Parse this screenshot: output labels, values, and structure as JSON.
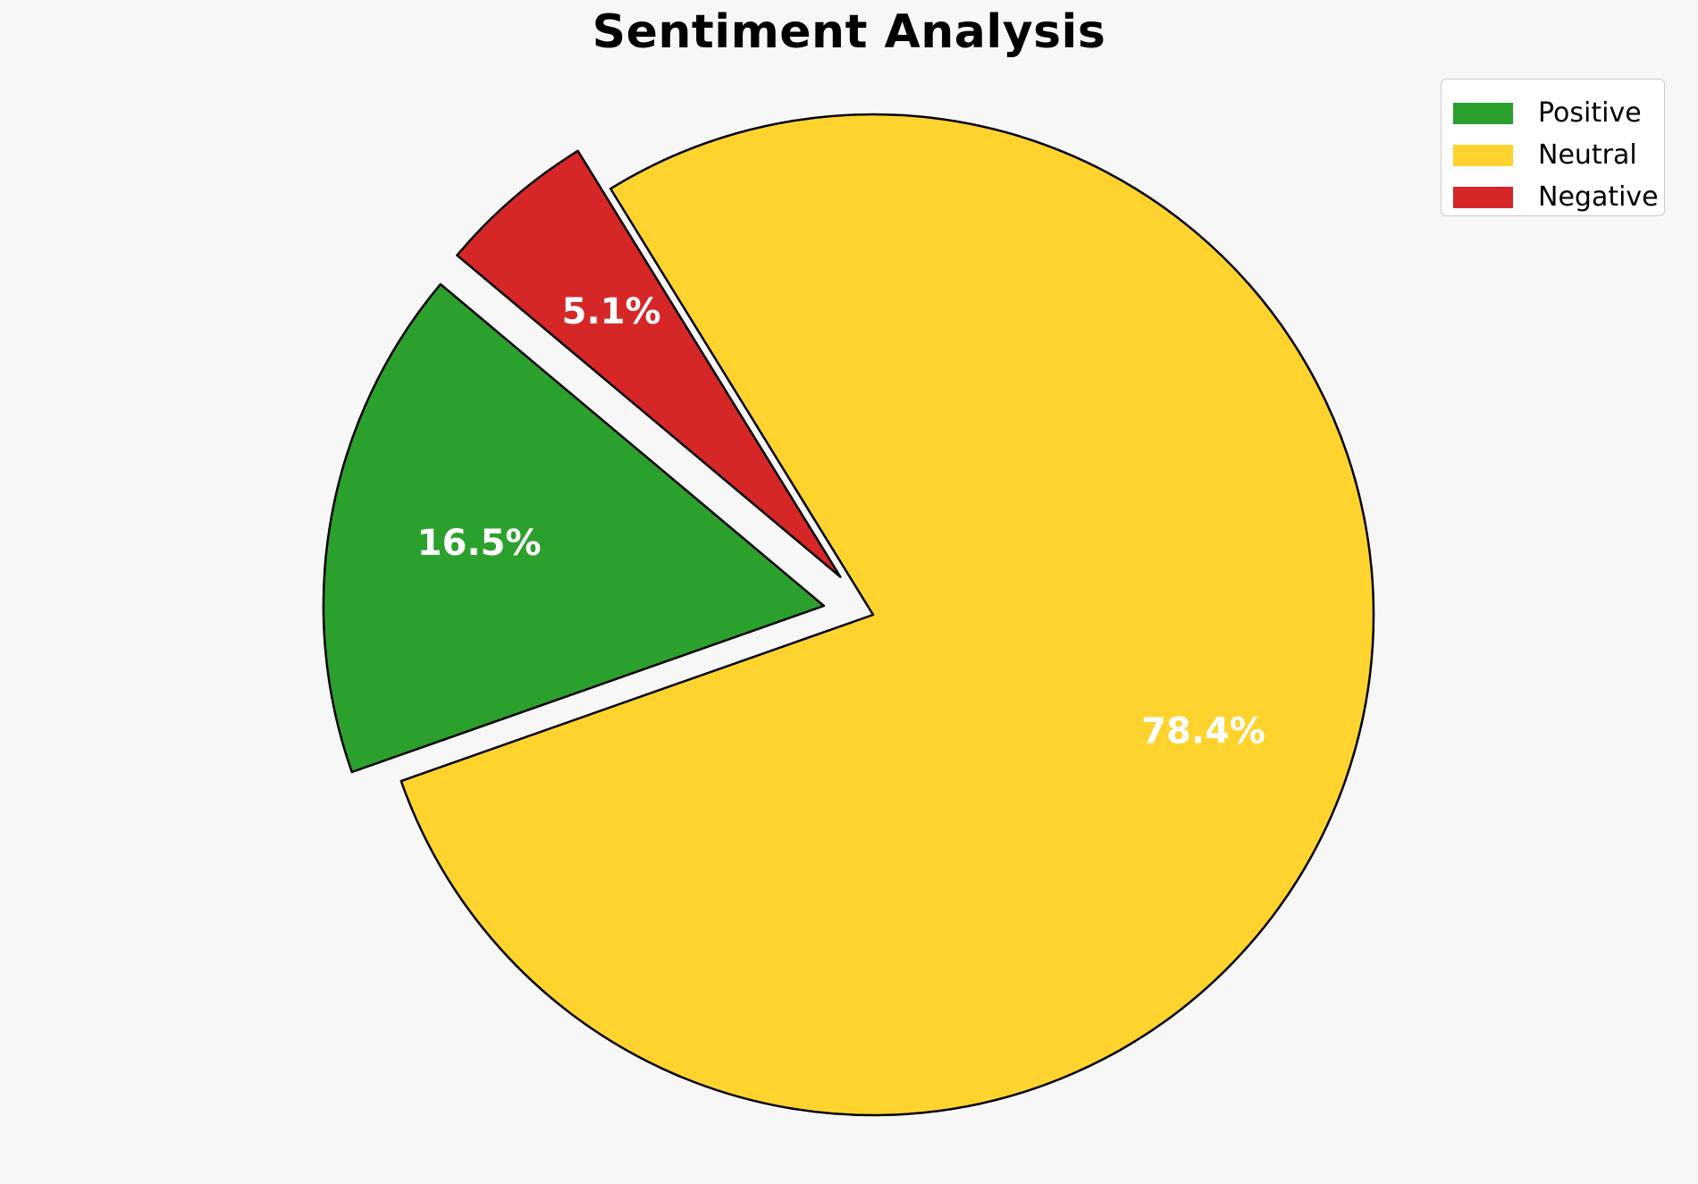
{
  "page": {
    "background_color": "#F7F7F7"
  },
  "chart_data": {
    "type": "pie",
    "title": "Sentiment Analysis",
    "series": [
      {
        "name": "Positive",
        "value": 16.5,
        "pct_label": "16.5%",
        "color": "#2CA02C",
        "explode": 0.1
      },
      {
        "name": "Neutral",
        "value": 78.4,
        "pct_label": "78.4%",
        "color": "#FFD32E",
        "explode": 0.0
      },
      {
        "name": "Negative",
        "value": 5.1,
        "pct_label": "5.1%",
        "color": "#D62728",
        "explode": 0.1
      }
    ],
    "start_angle_deg": 140,
    "counterclockwise": true,
    "pct_distance": 0.7,
    "pct_label_color": "#FFFFFF",
    "wedge_edge_color": "#000000",
    "wedge_edge_width": 2.5,
    "legend": {
      "position": "upper-right",
      "background": "#FFFFFF",
      "border_color": "#CCCCCC",
      "entries": [
        "Positive",
        "Neutral",
        "Negative"
      ]
    }
  }
}
